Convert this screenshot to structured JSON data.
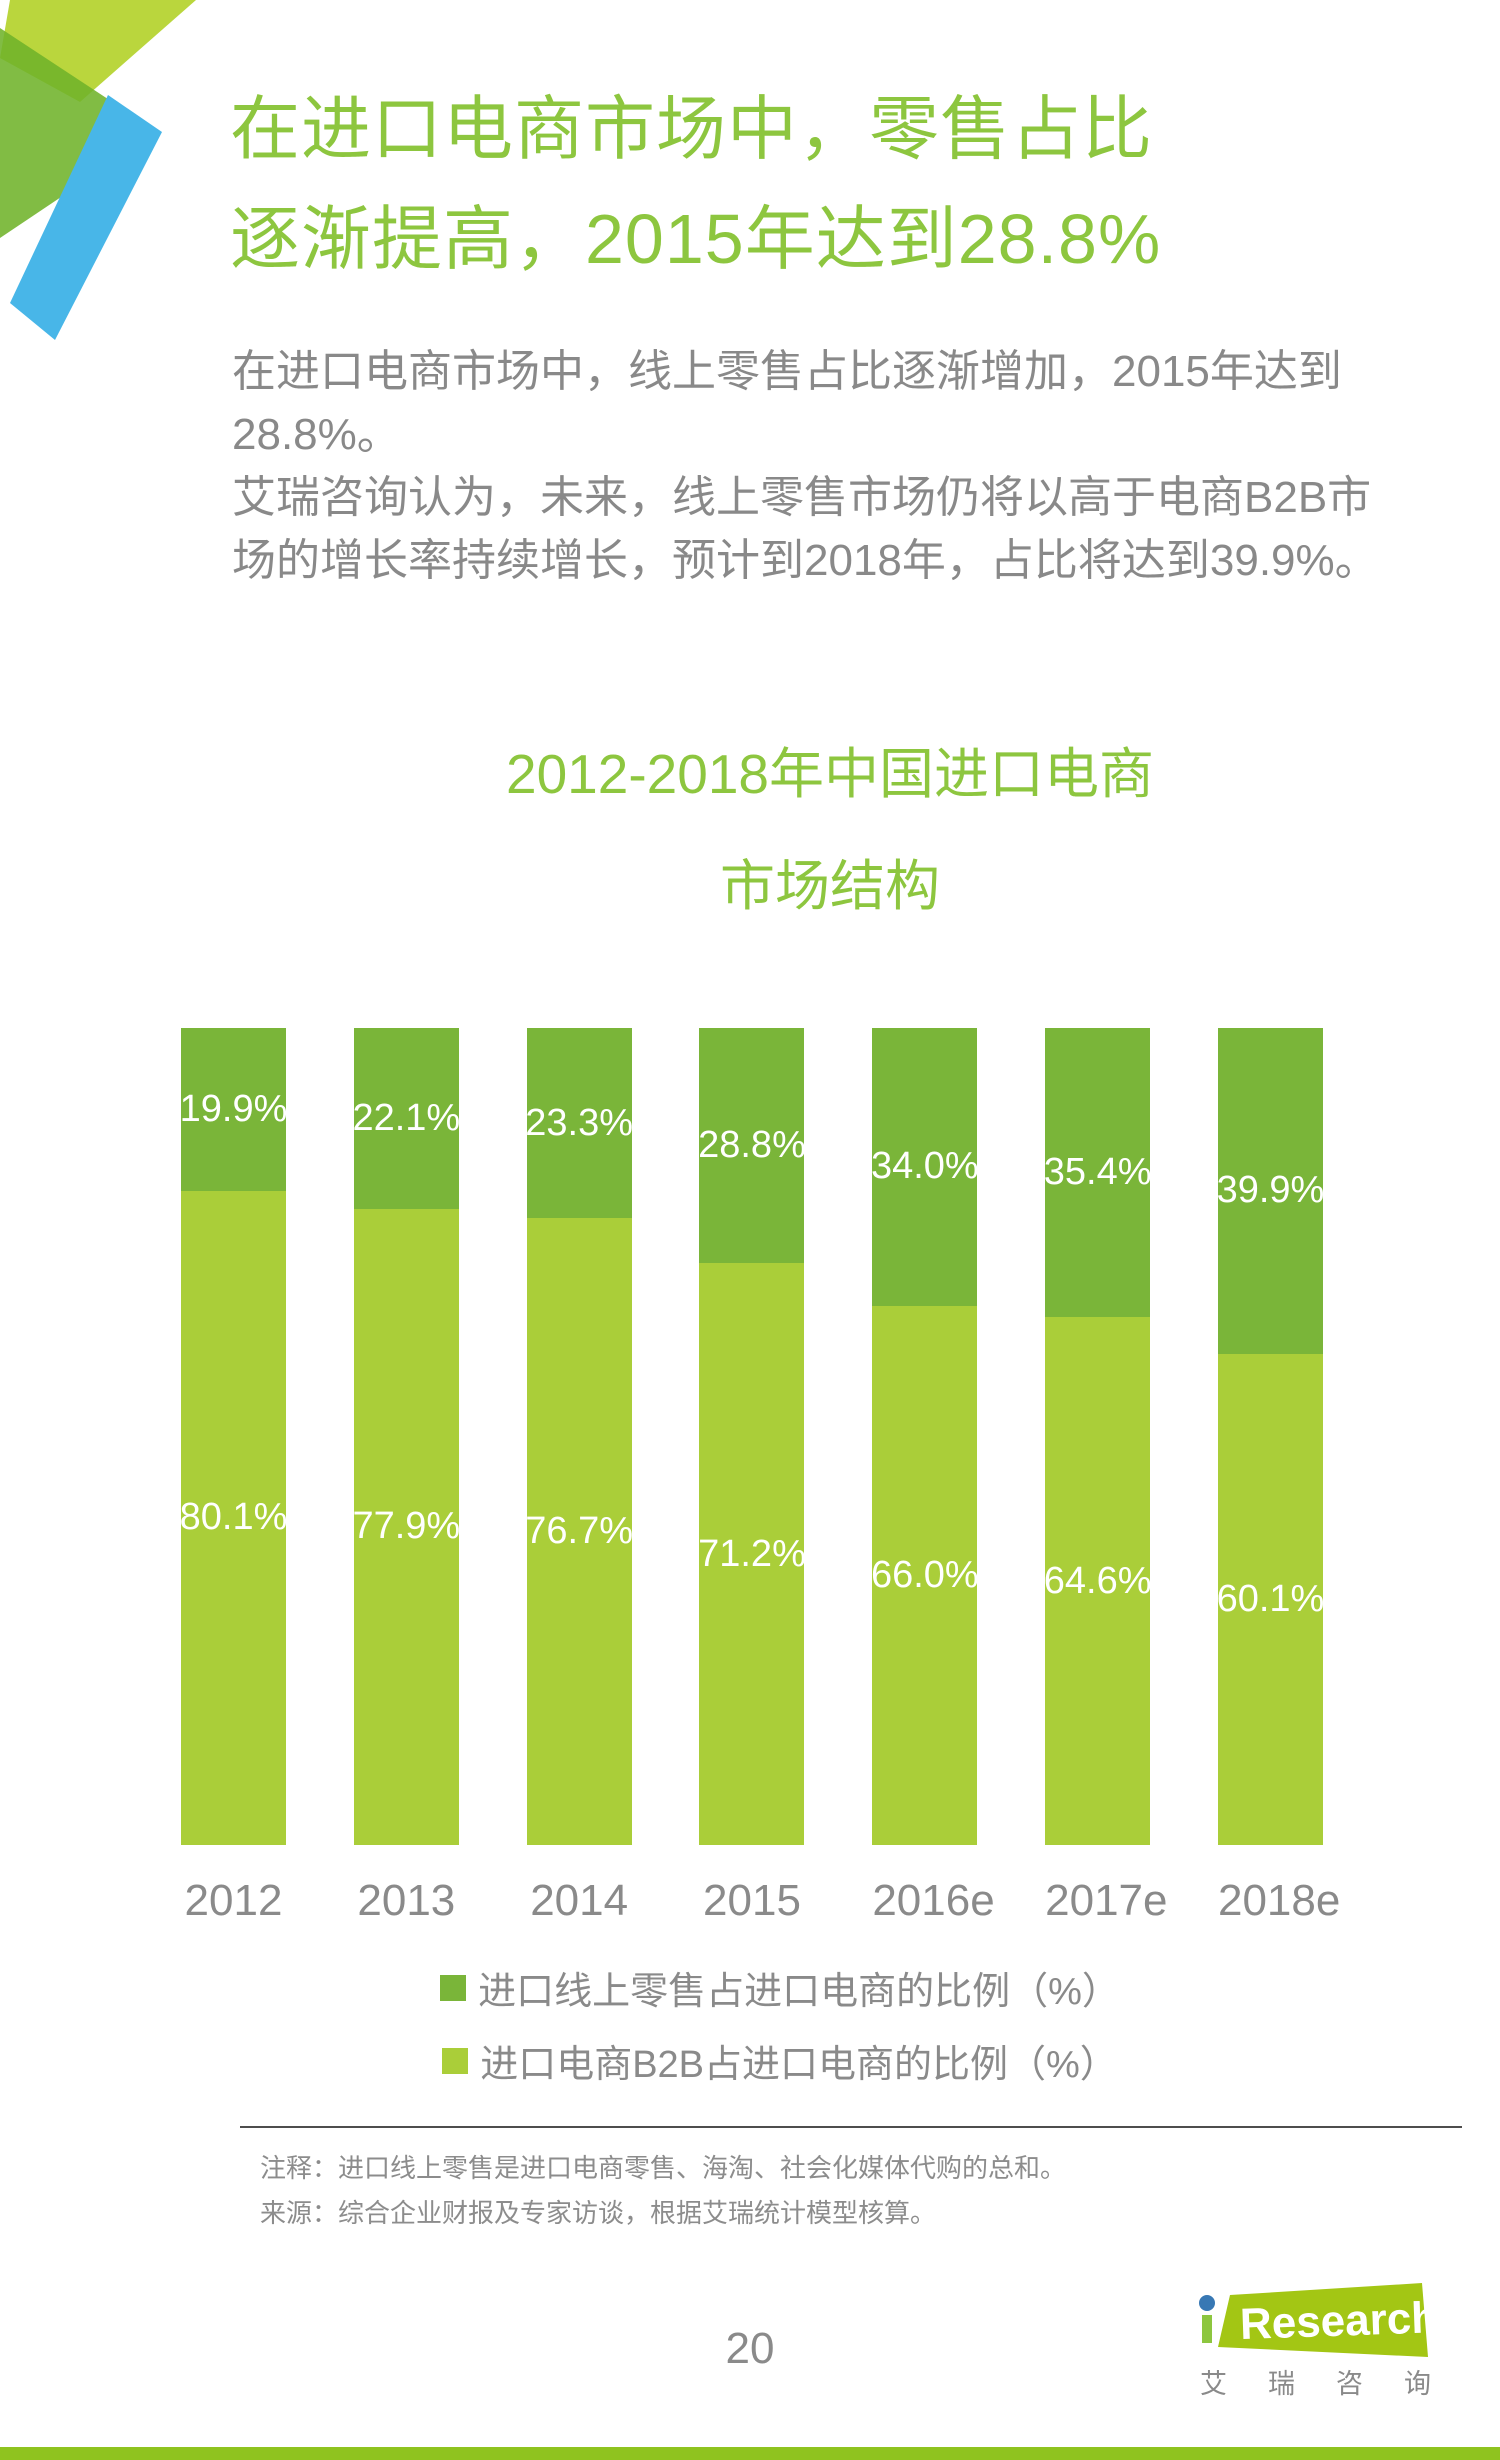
{
  "page": {
    "title_line1": "在进口电商市场中，零售占比",
    "title_line2": "逐渐提高，2015年达到28.8%",
    "paragraphs": [
      "在进口电商市场中，线上零售占比逐渐增加，2015年达到28.8%。",
      "艾瑞咨询认为，未来，线上零售市场仍将以高于电商B2B市场的增长率持续增长，预计到2018年，占比将达到39.9%。"
    ],
    "page_number": "20"
  },
  "chart_data": {
    "type": "bar",
    "stacked": true,
    "title_line1": "2012-2018年中国进口电商",
    "title_line2": "市场结构",
    "categories": [
      "2012",
      "2013",
      "2014",
      "2015",
      "2016e",
      "2017e",
      "2018e"
    ],
    "series": [
      {
        "name": "进口线上零售占进口电商的比例（%）",
        "color": "#7ab539",
        "values": [
          19.9,
          22.1,
          23.3,
          28.8,
          34.0,
          35.4,
          39.9
        ]
      },
      {
        "name": "进口电商B2B占进口电商的比例（%）",
        "color": "#aace39",
        "values": [
          80.1,
          77.9,
          76.7,
          71.2,
          66.0,
          64.6,
          60.1
        ]
      }
    ],
    "value_suffix": "%",
    "ylim": [
      0,
      100
    ],
    "grid": false,
    "legend_position": "bottom",
    "bar_label_color": "#ffffff",
    "xlabel": "",
    "ylabel": ""
  },
  "footnote": {
    "note": "注释：进口线上零售是进口电商零售、海淘、社会化媒体代购的总和。",
    "source": "来源：综合企业财报及专家访谈，根据艾瑞统计模型核算。"
  },
  "footer": {
    "logo_i": "i",
    "logo_text": "Research",
    "logo_subtext": "艾瑞咨询"
  },
  "colors": {
    "accent_green": "#8dc63f",
    "deco_light_green": "#b6d433",
    "deco_green": "#6fb32a",
    "deco_blue": "#48b6e8",
    "logo_green": "#a3c614",
    "logo_dot_blue": "#3878b4",
    "bottom_bar_green": "#8fc31f"
  }
}
